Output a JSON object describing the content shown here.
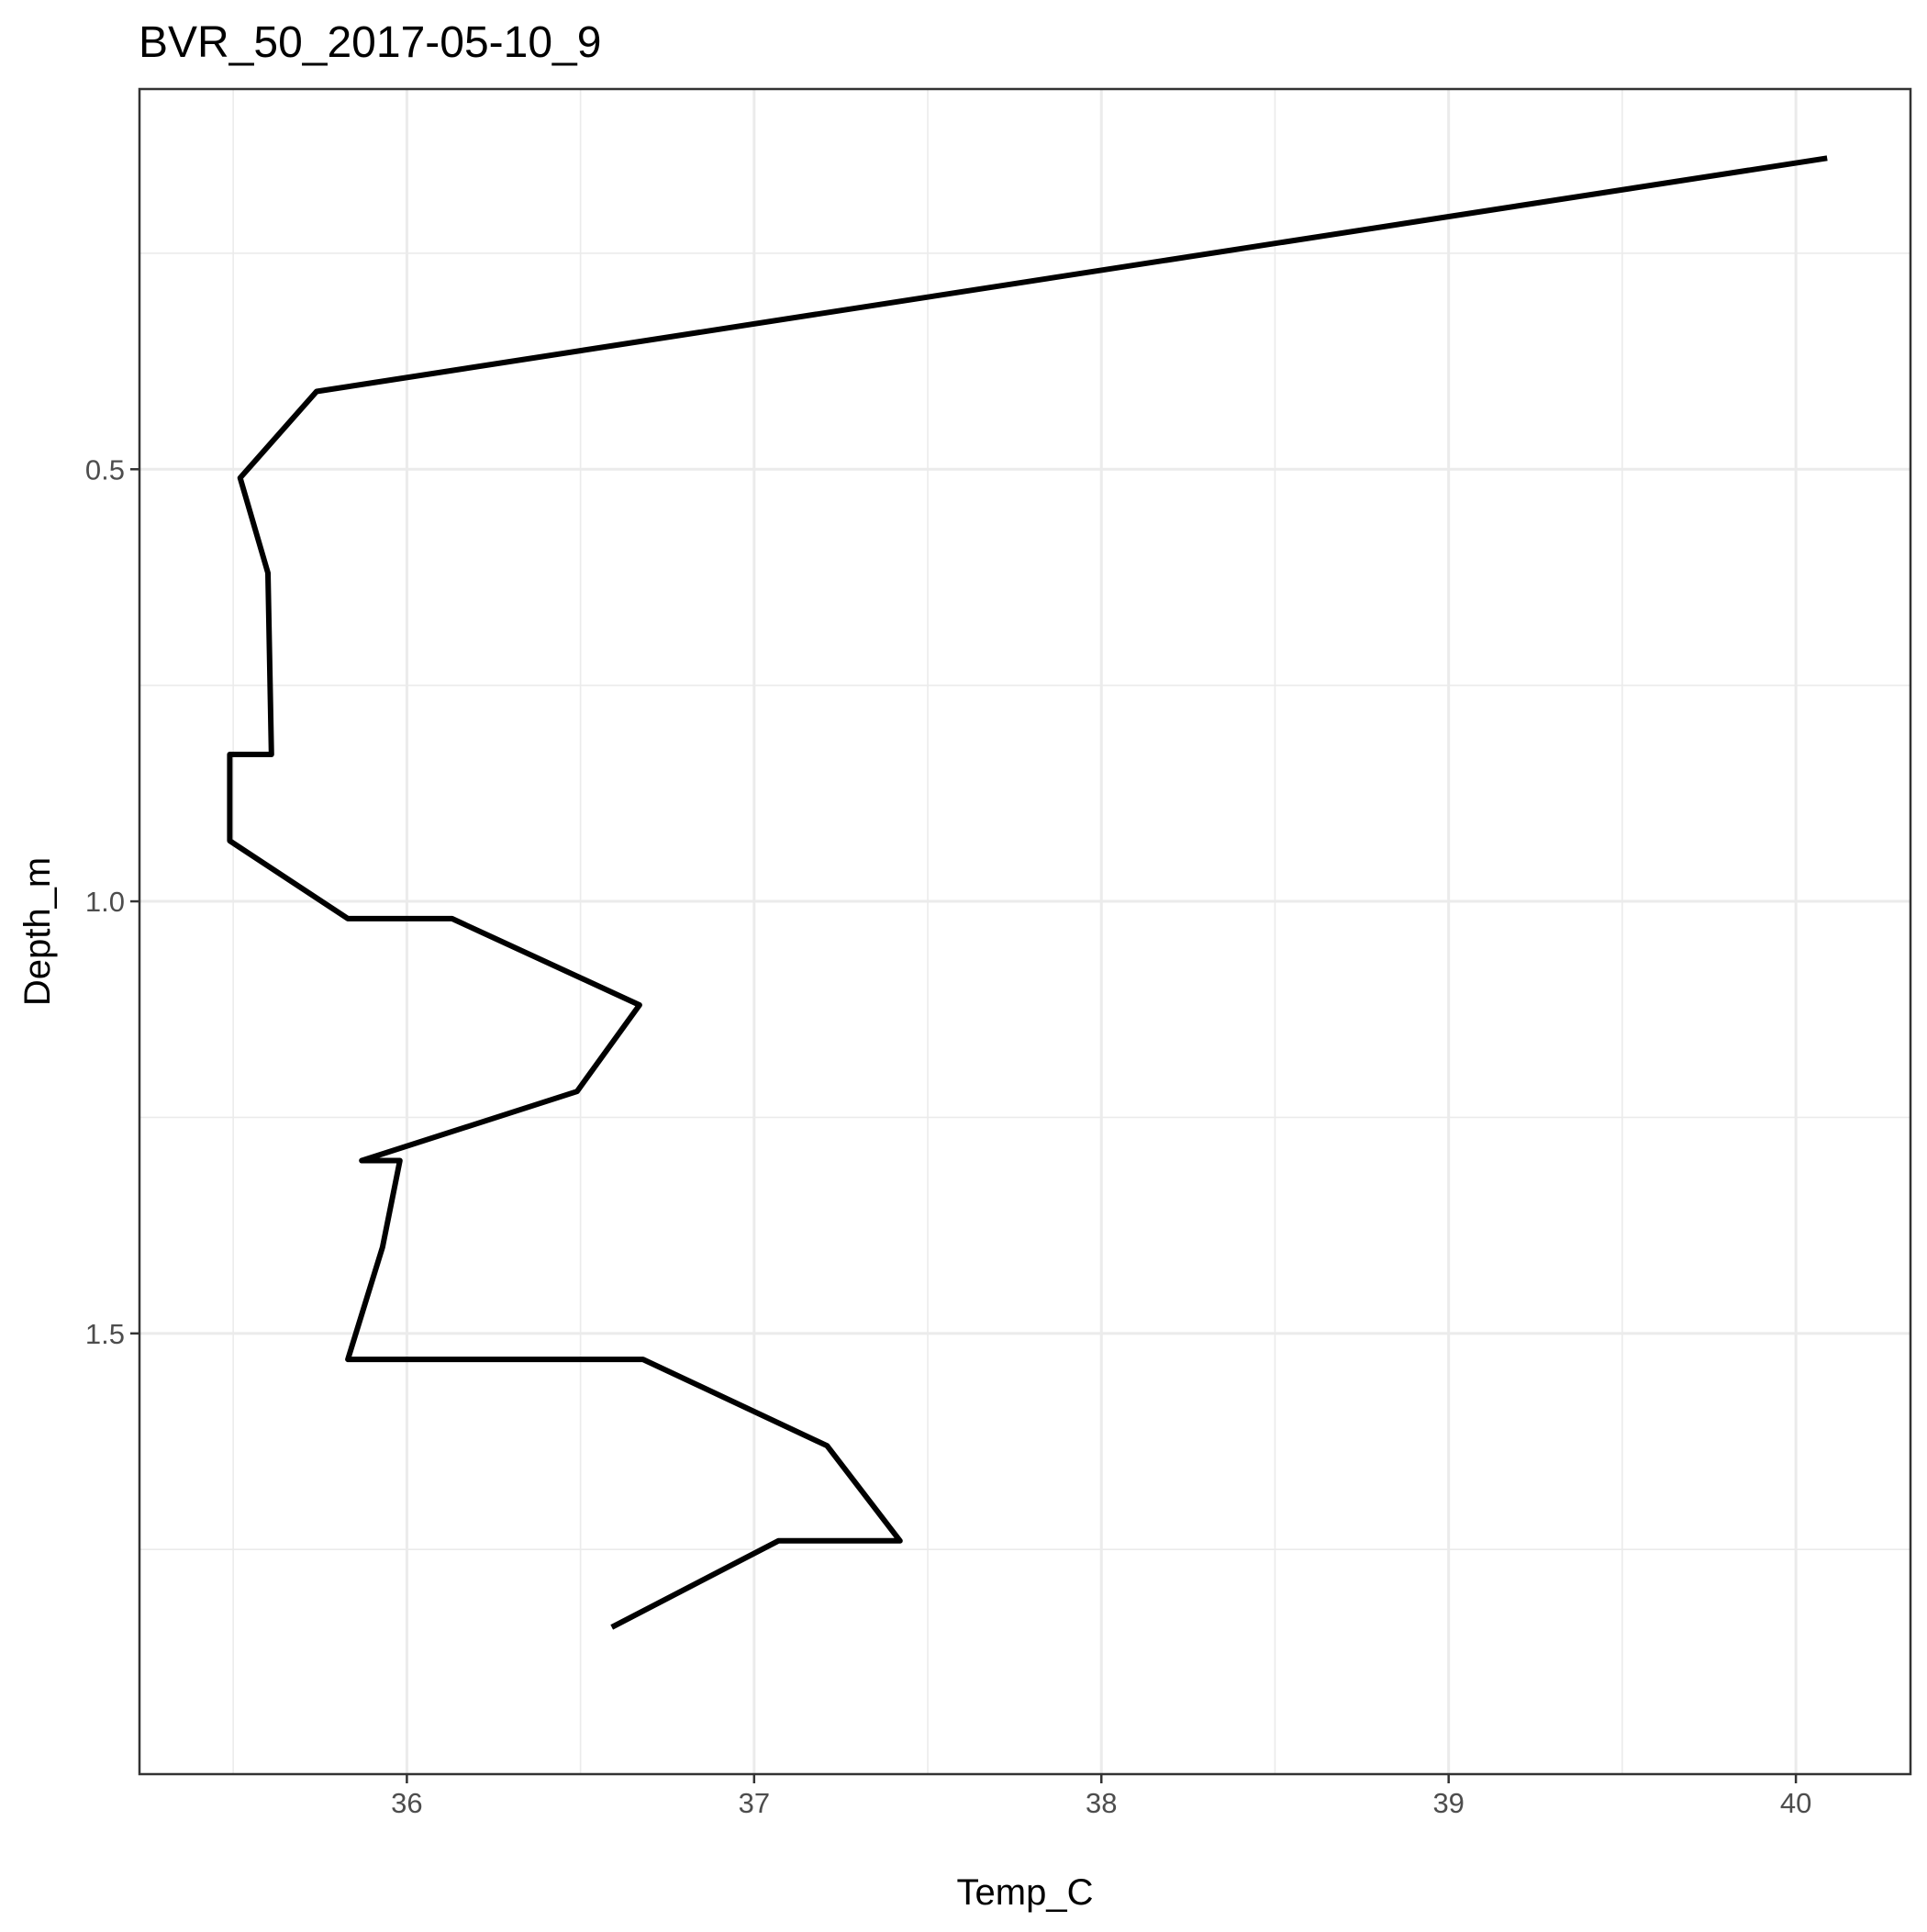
{
  "chart_data": {
    "type": "line",
    "title": "BVR_50_2017-05-10_9",
    "xlabel": "Temp_C",
    "ylabel": "Depth_m",
    "xlim": [
      35.23,
      40.33
    ],
    "ylim": [
      2.01,
      0.06
    ],
    "y_reversed": true,
    "x_ticks": [
      36,
      37,
      38,
      39,
      40
    ],
    "x_tick_labels": [
      "36",
      "37",
      "38",
      "39",
      "40"
    ],
    "x_minor_ticks": [
      35.5,
      36.5,
      37.5,
      38.5,
      39.5
    ],
    "y_ticks": [
      0.5,
      1.0,
      1.5
    ],
    "y_tick_labels": [
      "0.5",
      "1.0",
      "1.5"
    ],
    "y_minor_ticks": [
      0.25,
      0.75,
      1.25,
      1.75
    ],
    "grid": true,
    "legend": "none",
    "line_color": "#000000",
    "series": [
      {
        "x": [
          40.09,
          35.74,
          35.52,
          35.6,
          35.61,
          35.49,
          35.49,
          35.83,
          36.13,
          36.67,
          36.49,
          35.87,
          35.98,
          35.93,
          35.83,
          36.68,
          37.21,
          37.42,
          37.07,
          36.59
        ],
        "y": [
          0.14,
          0.41,
          0.51,
          0.62,
          0.83,
          0.83,
          0.93,
          1.02,
          1.02,
          1.12,
          1.22,
          1.3,
          1.3,
          1.4,
          1.53,
          1.53,
          1.63,
          1.74,
          1.74,
          1.84
        ]
      }
    ]
  }
}
